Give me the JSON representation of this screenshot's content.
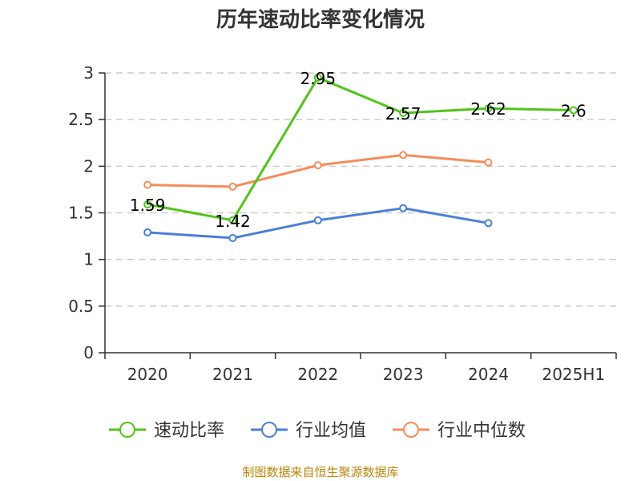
{
  "chart_data": {
    "type": "line",
    "title": "历年速动比率变化情况",
    "categories": [
      "2020",
      "2021",
      "2022",
      "2023",
      "2024",
      "2025H1"
    ],
    "ylim": [
      0,
      3
    ],
    "yticks": [
      "0",
      "0.5",
      "1",
      "1.5",
      "2",
      "2.5",
      "3"
    ],
    "grid": true,
    "legend_position": "bottom",
    "series": [
      {
        "name": "速动比率",
        "color": "#52c41a",
        "values": [
          1.59,
          1.42,
          2.95,
          2.57,
          2.62,
          2.6
        ],
        "labels": [
          "1.59",
          "1.42",
          "2.95",
          "2.57",
          "2.62",
          "2.6"
        ]
      },
      {
        "name": "行业均值",
        "color": "#4a7fd8",
        "values": [
          1.29,
          1.23,
          1.42,
          1.55,
          1.39,
          null
        ]
      },
      {
        "name": "行业中位数",
        "color": "#f58c5a",
        "values": [
          1.8,
          1.78,
          2.01,
          2.12,
          2.04,
          null
        ]
      }
    ],
    "source": "制图数据来自恒生聚源数据库"
  }
}
